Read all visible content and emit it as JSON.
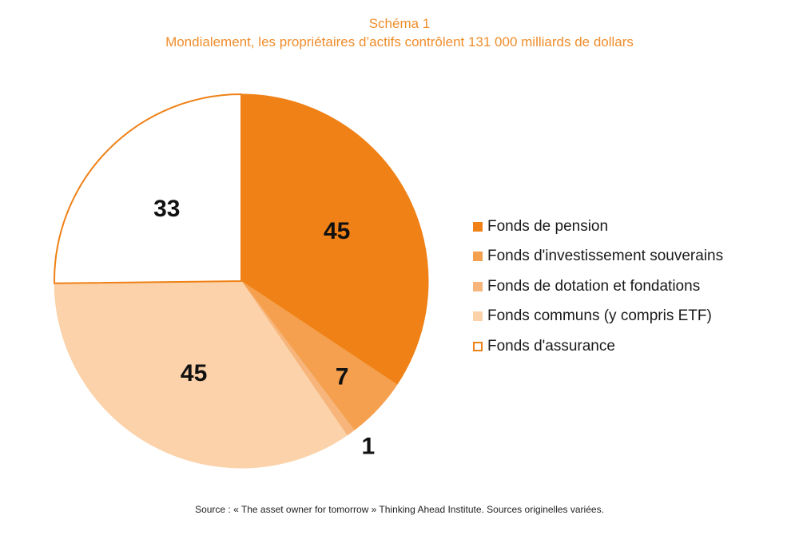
{
  "chart_data": {
    "type": "pie",
    "title": "Schéma 1",
    "subtitle": "Mondialement, les propriétaires d’actifs contrôlent 131 000 milliards de dollars",
    "slices": [
      {
        "label": "Fonds de pension",
        "value": 45,
        "color": "#ef8116",
        "stroke": "#ef8116"
      },
      {
        "label": "Fonds d'investissement souverains",
        "value": 7,
        "color": "#f4a04e",
        "stroke": "#f4a04e"
      },
      {
        "label": "Fonds de dotation et fondations",
        "value": 1,
        "color": "#f7b57b",
        "stroke": "#f7b57b"
      },
      {
        "label": "Fonds communs (y compris ETF)",
        "value": 45,
        "color": "#fbd2a9",
        "stroke": "#fbd2a9"
      },
      {
        "label": "Fonds d'assurance",
        "value": 33,
        "color": "#ffffff",
        "stroke": "#ef8116"
      }
    ],
    "legend_position": "right",
    "source": "Source : « The asset owner for tomorrow » Thinking Ahead Institute. Sources originelles variées."
  }
}
